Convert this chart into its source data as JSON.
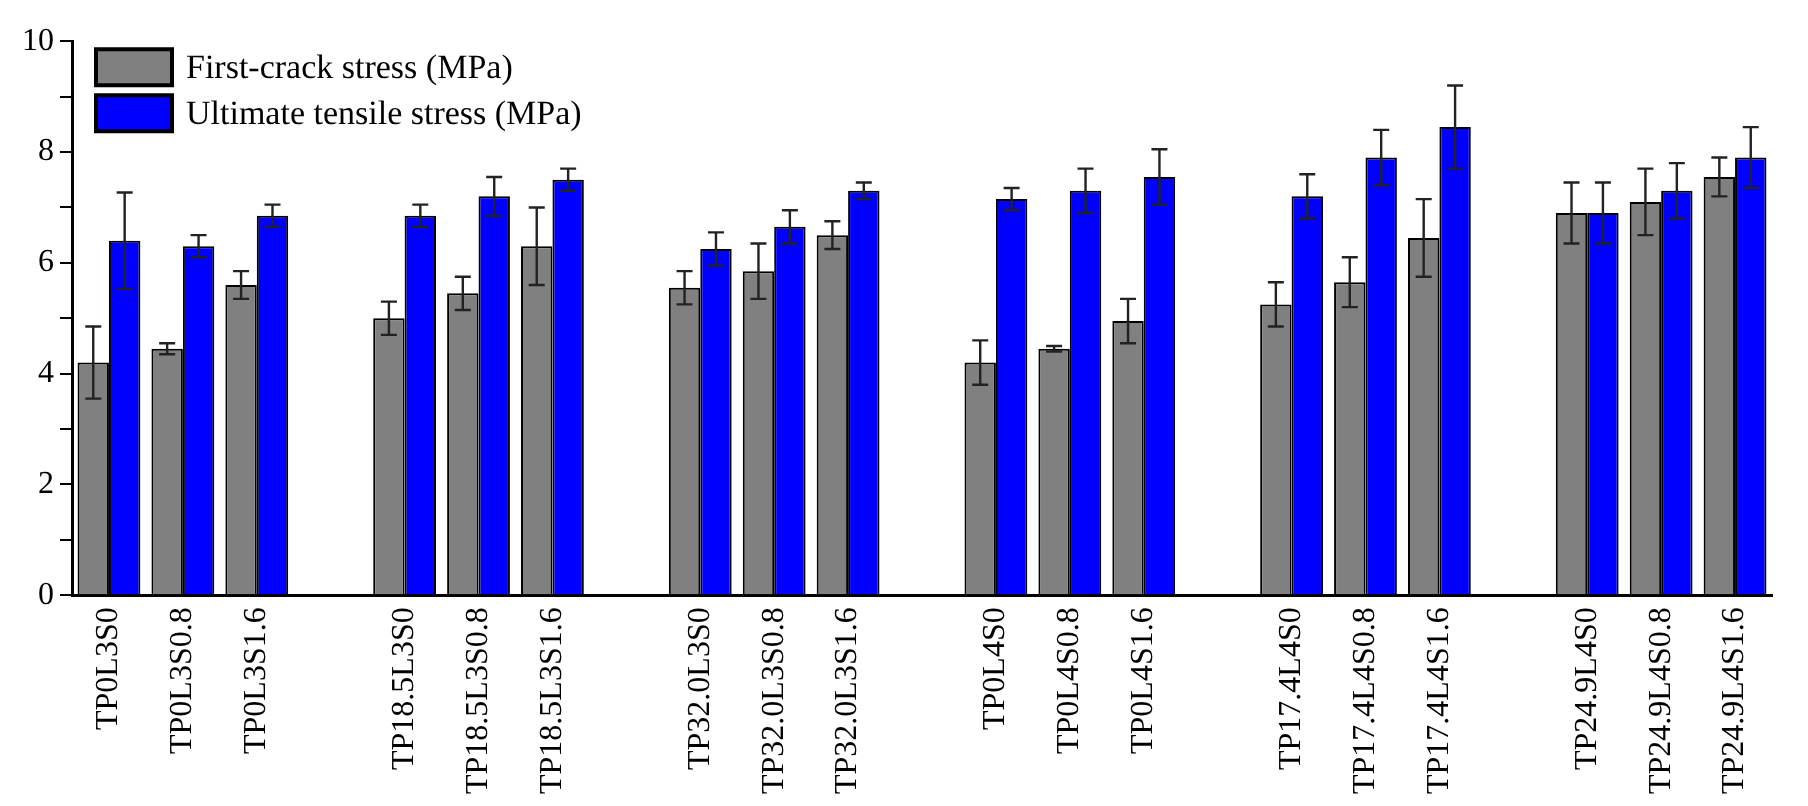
{
  "chart_data": {
    "type": "bar",
    "categories": [
      "TP0L3S0",
      "TP0L3S0.8",
      "TP0L3S1.6",
      null,
      "TP18.5L3S0",
      "TP18.5L3S0.8",
      "TP18.5L3S1.6",
      null,
      "TP32.0L3S0",
      "TP32.0L3S0.8",
      "TP32.0L3S1.6",
      null,
      "TP0L4S0",
      "TP0L4S0.8",
      "TP0L4S1.6",
      null,
      "TP17.4L4S0",
      "TP17.4L4S0.8",
      "TP17.4L4S1.6",
      null,
      "TP24.9L4S0",
      "TP24.9L4S0.8",
      "TP24.9L4S1.6"
    ],
    "series": [
      {
        "name": "First-crack stress (MPa)",
        "color": "#808080",
        "values": [
          4.2,
          4.45,
          5.6,
          null,
          5.0,
          5.45,
          6.3,
          null,
          5.55,
          5.85,
          6.5,
          null,
          4.2,
          4.45,
          4.95,
          null,
          5.25,
          5.65,
          6.45,
          null,
          6.9,
          7.1,
          7.55
        ],
        "errors": [
          0.65,
          0.1,
          0.25,
          null,
          0.3,
          0.3,
          0.7,
          null,
          0.3,
          0.5,
          0.25,
          null,
          0.4,
          0.05,
          0.4,
          null,
          0.4,
          0.45,
          0.7,
          null,
          0.55,
          0.6,
          0.35
        ]
      },
      {
        "name": "Ultimate tensile stress (MPa)",
        "color": "#0000ff",
        "values": [
          6.4,
          6.3,
          6.85,
          null,
          6.85,
          7.2,
          7.5,
          null,
          6.25,
          6.65,
          7.3,
          null,
          7.15,
          7.3,
          7.55,
          null,
          7.2,
          7.9,
          8.45,
          null,
          6.9,
          7.3,
          7.9
        ],
        "errors": [
          0.87,
          0.2,
          0.2,
          null,
          0.2,
          0.35,
          0.2,
          null,
          0.3,
          0.3,
          0.15,
          null,
          0.2,
          0.4,
          0.5,
          null,
          0.4,
          0.5,
          0.75,
          null,
          0.55,
          0.5,
          0.55
        ]
      }
    ],
    "ylim": [
      0,
      10
    ],
    "yticks": [
      0,
      {
        "value": 1,
        "label": null
      },
      2,
      {
        "value": 3,
        "label": null
      },
      4,
      {
        "value": 5,
        "label": null
      },
      6,
      {
        "value": 7,
        "label": null
      },
      8,
      {
        "value": 9,
        "label": null
      },
      10
    ],
    "grid": false,
    "legend": "top left"
  }
}
